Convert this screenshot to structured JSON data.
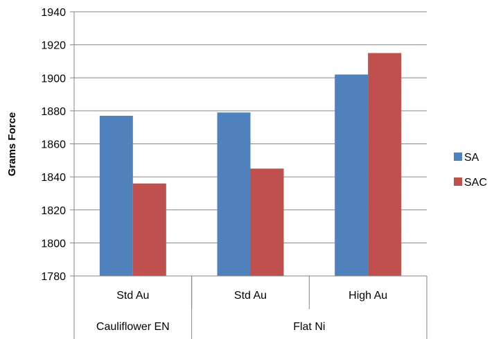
{
  "chart_data": {
    "type": "bar",
    "title": "",
    "xlabel": "",
    "ylabel": "Grams Force",
    "ylim": [
      1780,
      1940
    ],
    "yticks": [
      1780,
      1800,
      1820,
      1840,
      1860,
      1880,
      1900,
      1920,
      1940
    ],
    "grid": true,
    "legend_position": "right",
    "categories": [
      "Std Au",
      "Std Au",
      "High Au"
    ],
    "groups": [
      {
        "label": "Cauliflower EN",
        "span": 1
      },
      {
        "label": "Flat Ni",
        "span": 2
      }
    ],
    "series": [
      {
        "name": "SA",
        "color": "#4F81BD",
        "values": [
          1877,
          1879,
          1902
        ]
      },
      {
        "name": "SAC",
        "color": "#C0504D",
        "values": [
          1836,
          1845,
          1915
        ]
      }
    ]
  }
}
